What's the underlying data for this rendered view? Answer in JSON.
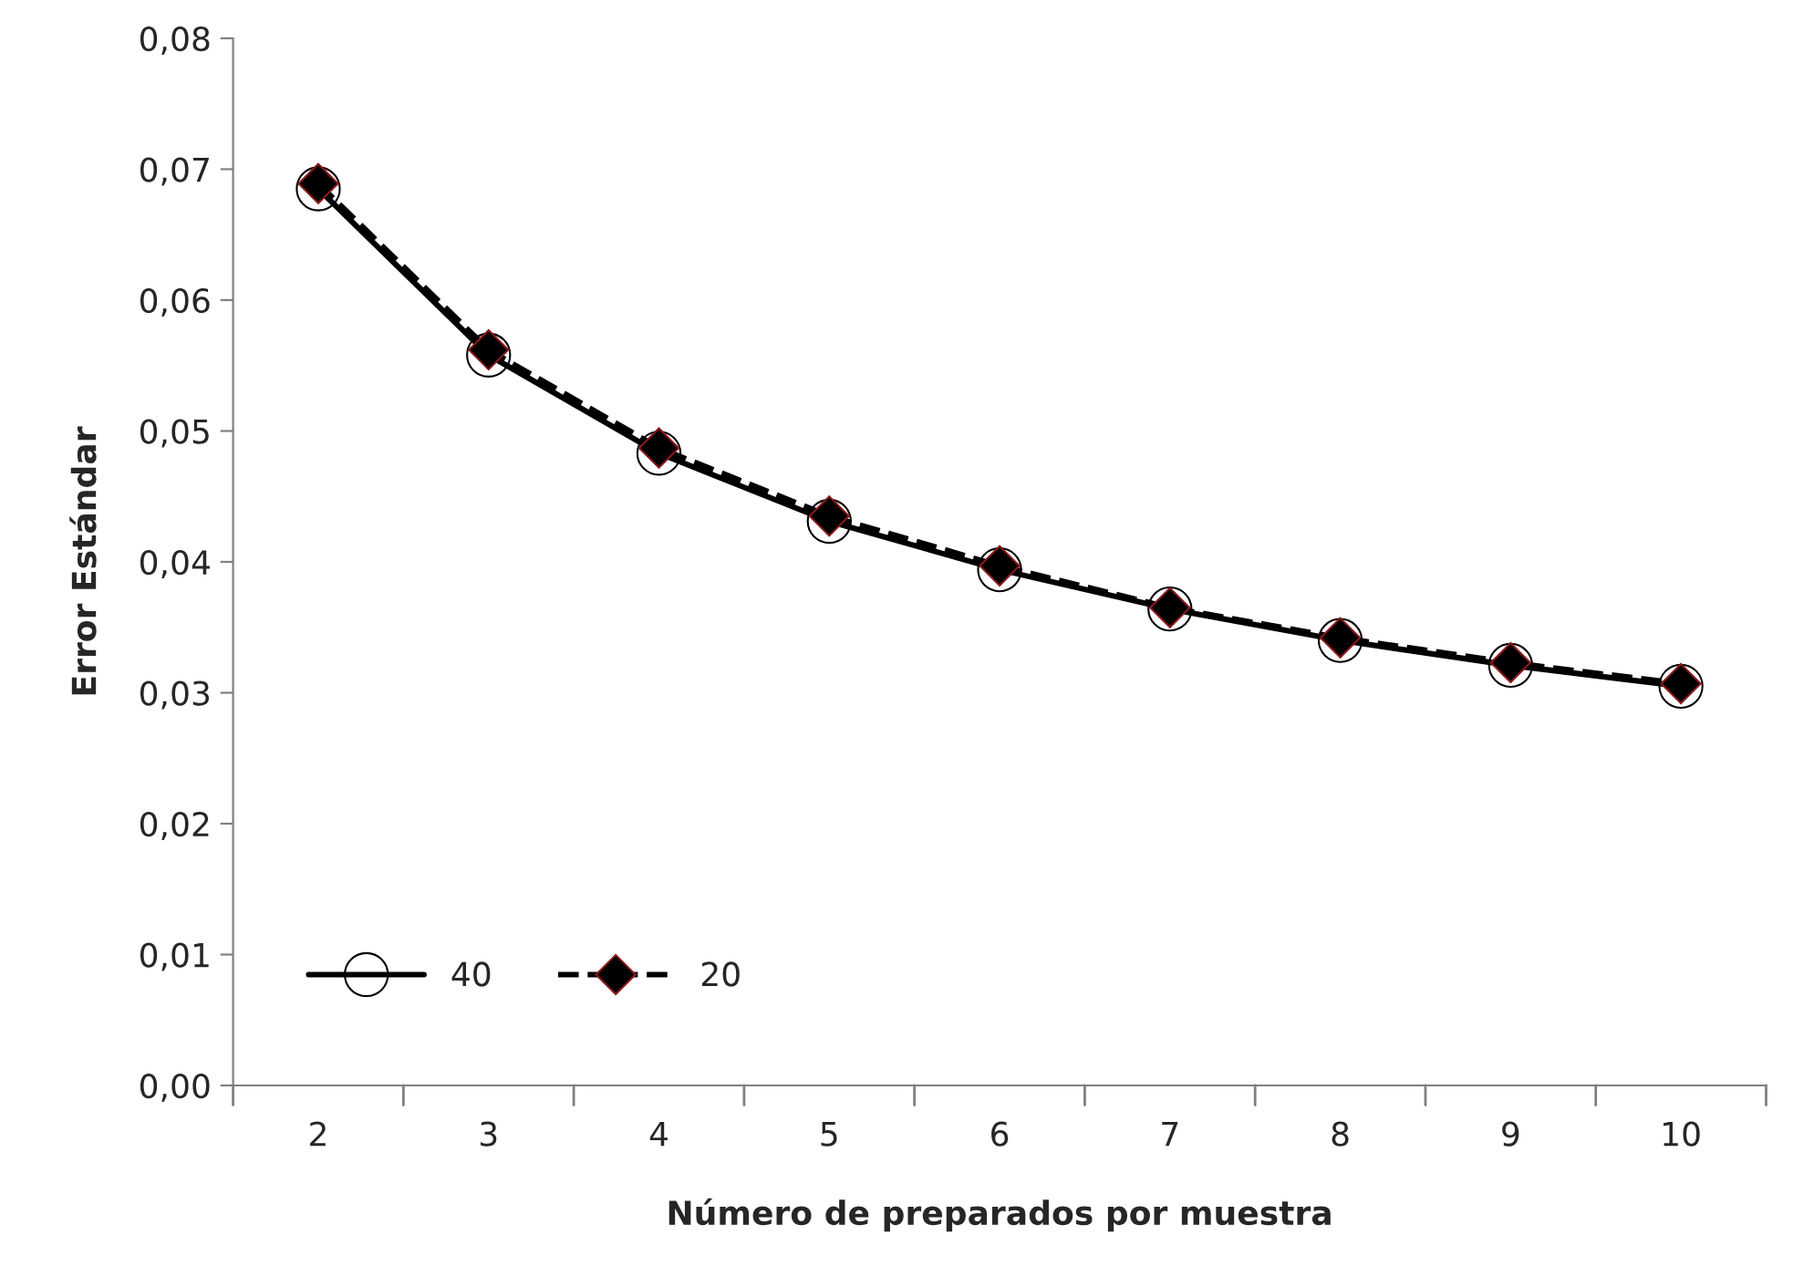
{
  "chart_data": {
    "type": "line",
    "xlabel": "Número de preparados por muestra",
    "ylabel": "Error Estándar",
    "categories": [
      "2",
      "3",
      "4",
      "5",
      "6",
      "7",
      "8",
      "9",
      "10"
    ],
    "series": [
      {
        "name": "40",
        "color": "#000000",
        "marker": "circle",
        "line_style": "solid",
        "values": [
          0.0685,
          0.0558,
          0.0483,
          0.0431,
          0.0394,
          0.0364,
          0.034,
          0.0321,
          0.0305
        ]
      },
      {
        "name": "20",
        "color": "#000000",
        "marker": "diamond",
        "line_style": "dashed",
        "values": [
          0.0689,
          0.0562,
          0.0487,
          0.0435,
          0.0397,
          0.0365,
          0.0342,
          0.0323,
          0.0307
        ]
      }
    ],
    "ylim": [
      0,
      0.08
    ],
    "yticks": [
      {
        "value": 0,
        "label": "0,00"
      },
      {
        "value": 0.01,
        "label": "0,01"
      },
      {
        "value": 0.02,
        "label": "0,02"
      },
      {
        "value": 0.03,
        "label": "0,03"
      },
      {
        "value": 0.04,
        "label": "0,04"
      },
      {
        "value": 0.05,
        "label": "0,05"
      },
      {
        "value": 0.06,
        "label": "0,06"
      },
      {
        "value": 0.07,
        "label": "0,07"
      },
      {
        "value": 0.08,
        "label": "0,08"
      }
    ],
    "grid": false,
    "legend": "bottom left"
  }
}
